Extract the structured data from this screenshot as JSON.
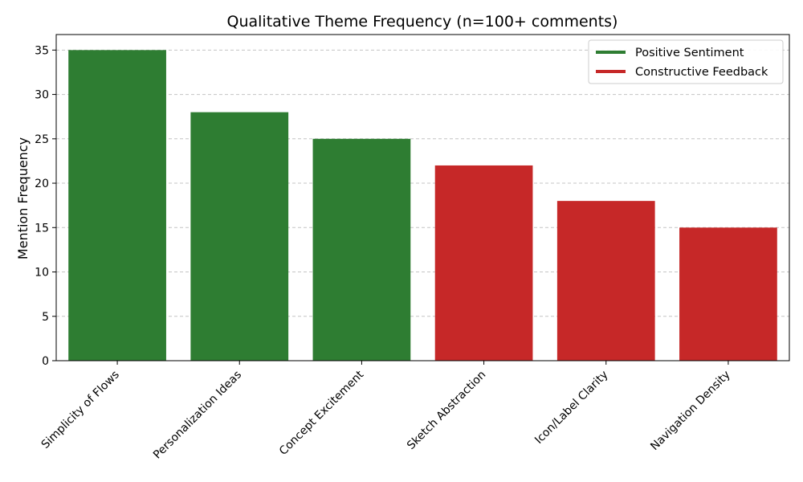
{
  "chart_data": {
    "type": "bar",
    "title": "Qualitative Theme Frequency (n=100+ comments)",
    "xlabel": "",
    "ylabel": "Mention Frequency",
    "categories": [
      "Simplicity of Flows",
      "Personalization Ideas",
      "Concept Excitement",
      "Sketch Abstraction",
      "Icon/Label Clarity",
      "Navigation Density"
    ],
    "values": [
      35,
      28,
      25,
      22,
      18,
      15
    ],
    "bar_groups": [
      "positive",
      "positive",
      "positive",
      "constructive",
      "constructive",
      "constructive"
    ],
    "ylim": [
      0,
      36.75
    ],
    "yticks": [
      0,
      5,
      10,
      15,
      20,
      25,
      30,
      35
    ],
    "grid": "y-dashed",
    "legend_placement": "top-right",
    "legend": [
      {
        "key": "positive",
        "label": "Positive Sentiment",
        "color": "#2e7d32"
      },
      {
        "key": "constructive",
        "label": "Constructive Feedback",
        "color": "#c62828"
      }
    ]
  }
}
